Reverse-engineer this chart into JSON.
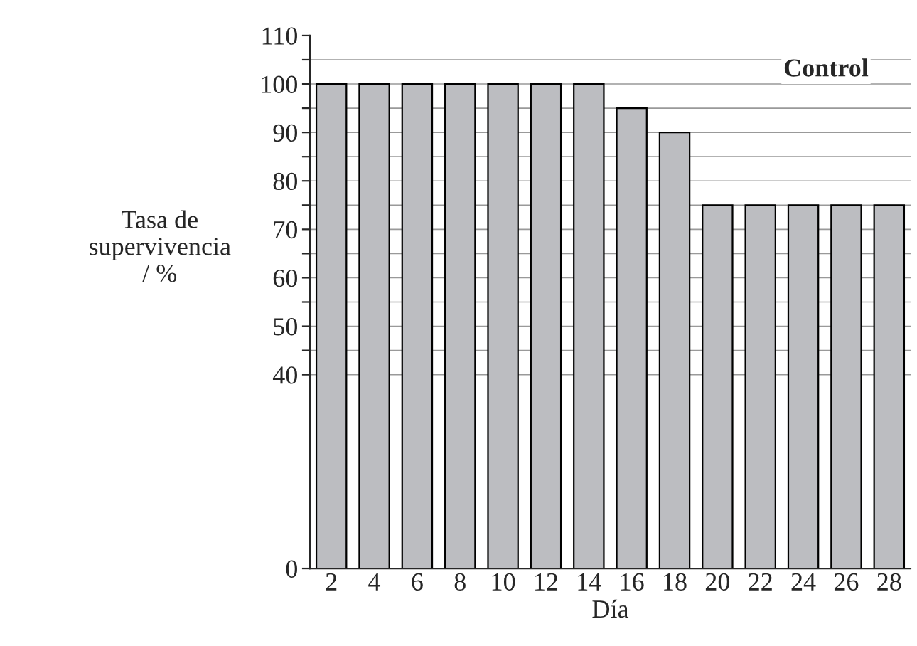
{
  "chart_data": {
    "type": "bar",
    "categories": [
      "2",
      "4",
      "6",
      "8",
      "10",
      "12",
      "14",
      "16",
      "18",
      "20",
      "22",
      "24",
      "26",
      "28"
    ],
    "values": [
      100,
      100,
      100,
      100,
      100,
      100,
      100,
      95,
      90,
      75,
      75,
      75,
      75,
      75
    ],
    "color": "#bcbdc1",
    "xlabel": "Día",
    "ylabel": "Tasa de\nsupervivencia\n/ %",
    "annotations": [
      "Control"
    ],
    "ylim": [
      0,
      110
    ],
    "yticks": [
      0,
      40,
      {
        "value": 45,
        "label": null
      },
      50,
      {
        "value": 55,
        "label": null
      },
      60,
      {
        "value": 65,
        "label": null
      },
      70,
      {
        "value": 75,
        "label": null
      },
      80,
      {
        "value": 85,
        "label": null
      },
      90,
      {
        "value": 95,
        "label": null
      },
      100,
      {
        "value": 105,
        "label": null
      },
      110
    ],
    "grid": "y"
  }
}
